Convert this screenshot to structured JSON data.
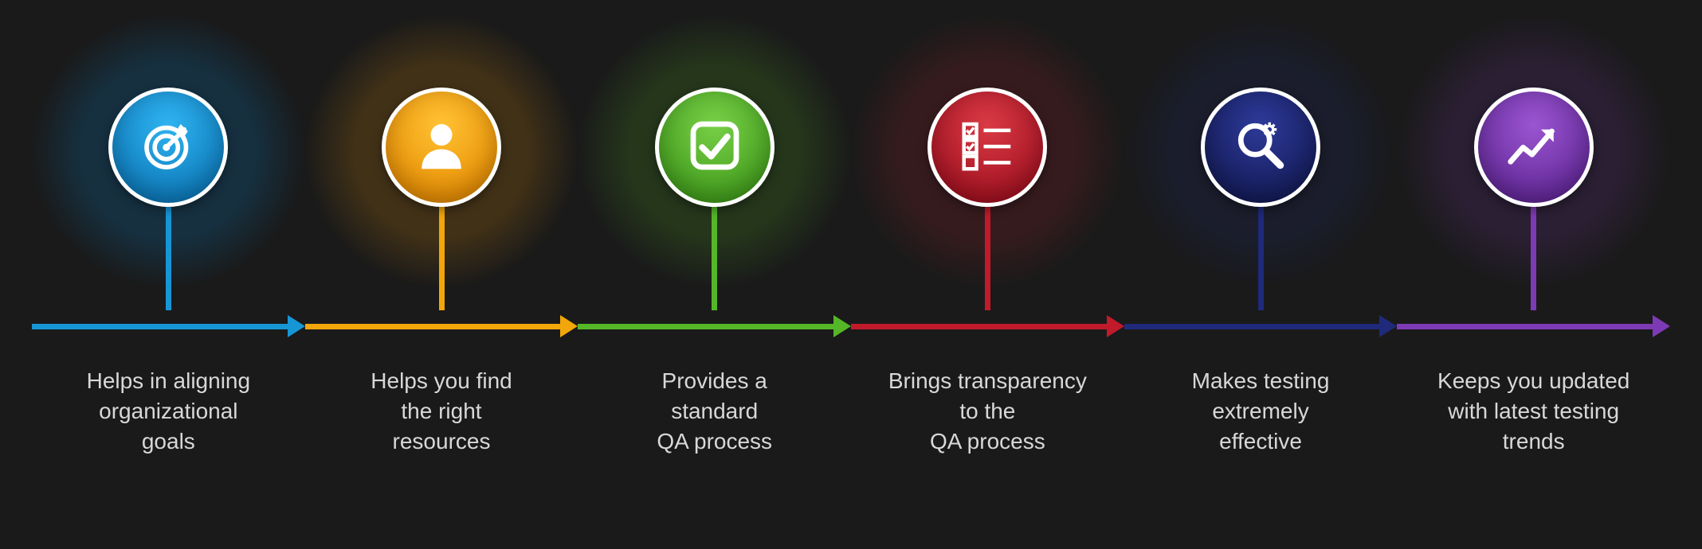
{
  "infographic": {
    "type": "infographic",
    "background_color": "#1a1a1a",
    "text_color": "#d8d8d8",
    "label_fontsize": 28,
    "circle_diameter": 150,
    "circle_border_color": "#ffffff",
    "circle_border_width": 5,
    "glow_diameter": 340,
    "glow_opacity": 0.35,
    "stem_height": 130,
    "stem_width": 7,
    "arrow_line_height": 7,
    "arrowhead_size": 14,
    "steps": [
      {
        "icon": "target",
        "label": "Helps in aligning\norganizational\ngoals",
        "color": "#1796d6",
        "glow_color": "#0f5a87",
        "circle_gradient_top": "#2fb3f0",
        "circle_gradient_bottom": "#0b77b8"
      },
      {
        "icon": "person",
        "label": "Helps you find\nthe right\nresources",
        "color": "#f2a60a",
        "glow_color": "#8a5d12",
        "circle_gradient_top": "#ffc233",
        "circle_gradient_bottom": "#e68a00"
      },
      {
        "icon": "checkbox",
        "label": "Provides a\nstandard\nQA process",
        "color": "#55b728",
        "glow_color": "#3a6b1f",
        "circle_gradient_top": "#78cf47",
        "circle_gradient_bottom": "#3f9b1a"
      },
      {
        "icon": "checklist",
        "label": "Brings transparency\nto the\nQA process",
        "color": "#c11a2a",
        "glow_color": "#6b1f26",
        "circle_gradient_top": "#d93a44",
        "circle_gradient_bottom": "#a00f1f"
      },
      {
        "icon": "magnifier-gear",
        "label": "Makes testing\nextremely\neffective",
        "color": "#1f2a7a",
        "glow_color": "#1d2550",
        "circle_gradient_top": "#2d3a99",
        "circle_gradient_bottom": "#131a55"
      },
      {
        "icon": "trend-up",
        "label": "Keeps you updated\nwith latest testing\ntrends",
        "color": "#7d3ab5",
        "glow_color": "#4a2a62",
        "circle_gradient_top": "#9a55d0",
        "circle_gradient_bottom": "#5f2595"
      }
    ]
  }
}
